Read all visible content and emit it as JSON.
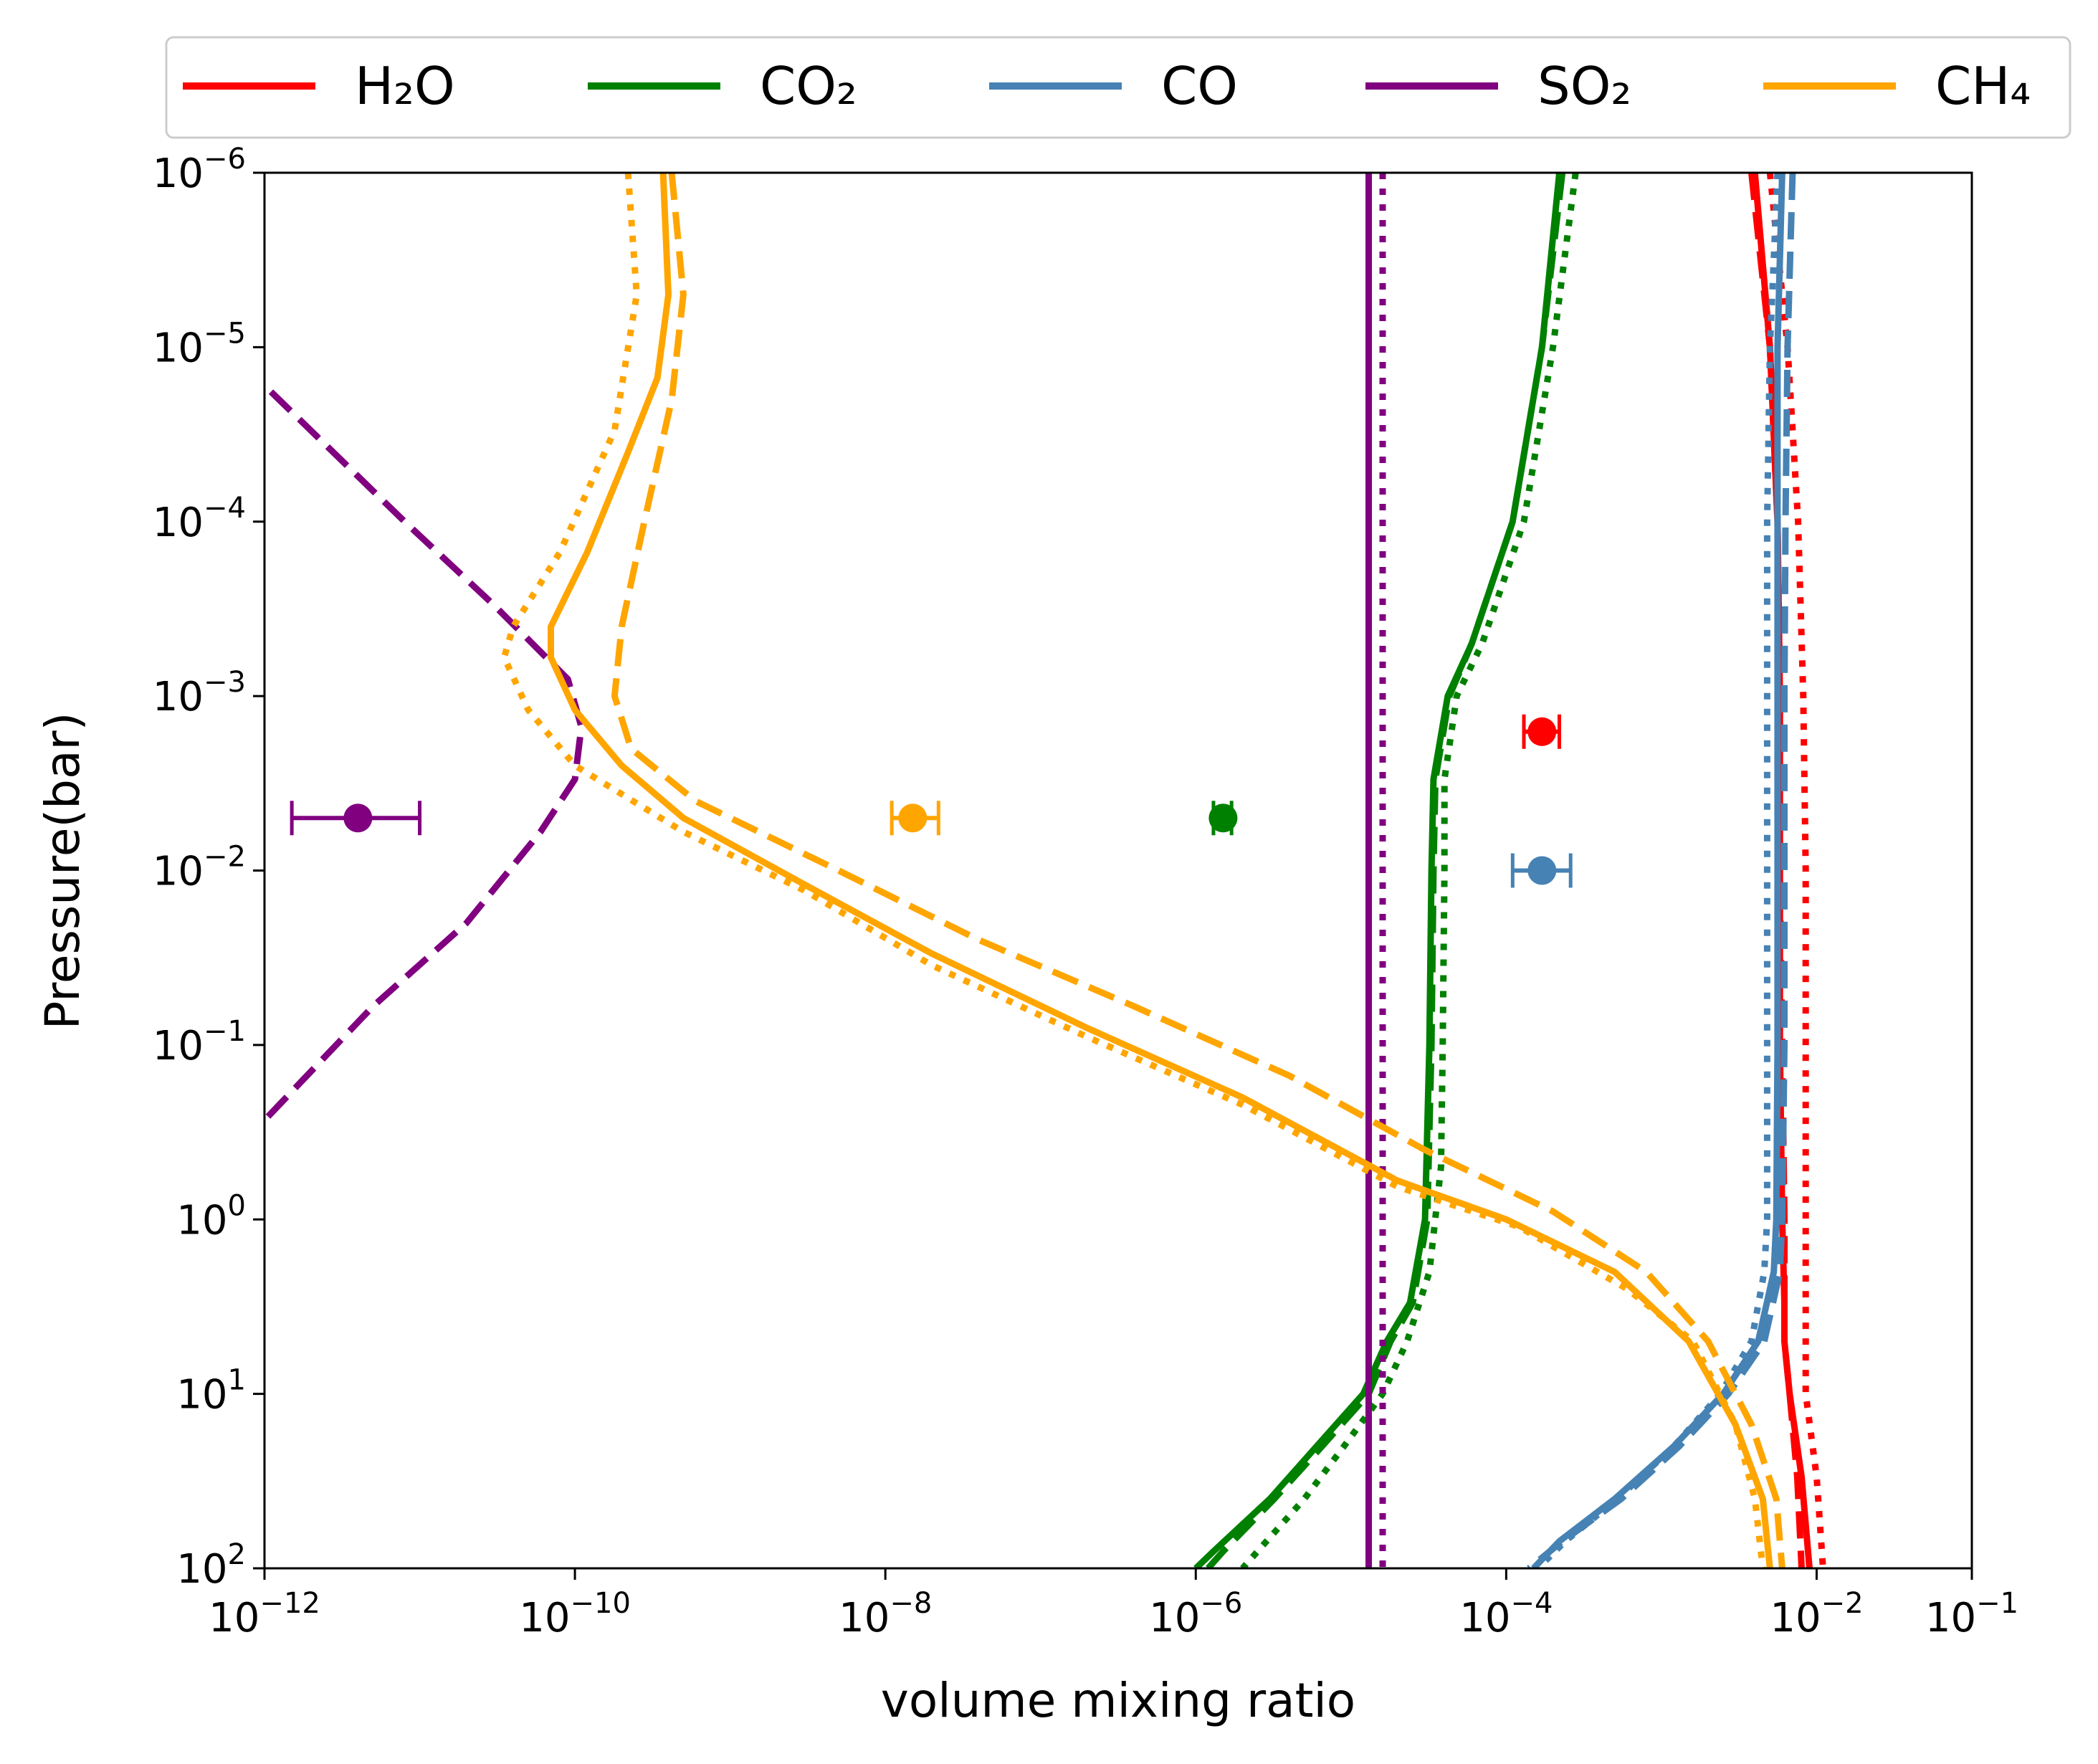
{
  "chart_data": {
    "type": "line",
    "xlabel": "volume mixing ratio",
    "ylabel": "Pressure(bar)",
    "xscale": "log",
    "yscale": "log",
    "yinverted": true,
    "xlim": [
      1e-12,
      0.1
    ],
    "ylim": [
      100,
      1e-06
    ],
    "x_ticks": [
      {
        "base": "10",
        "exp": "−12"
      },
      {
        "base": "10",
        "exp": "−10"
      },
      {
        "base": "10",
        "exp": "−8"
      },
      {
        "base": "10",
        "exp": "−6"
      },
      {
        "base": "10",
        "exp": "−4"
      },
      {
        "base": "10",
        "exp": "−2"
      },
      {
        "base": "10",
        "exp": "−1"
      }
    ],
    "y_ticks": [
      {
        "base": "10",
        "exp": "−6"
      },
      {
        "base": "10",
        "exp": "−5"
      },
      {
        "base": "10",
        "exp": "−4"
      },
      {
        "base": "10",
        "exp": "−3"
      },
      {
        "base": "10",
        "exp": "−2"
      },
      {
        "base": "10",
        "exp": "−1"
      },
      {
        "base": "10",
        "exp": "0"
      },
      {
        "base": "10",
        "exp": "1"
      },
      {
        "base": "10",
        "exp": "2"
      }
    ],
    "legend": {
      "placement": "top, above plot",
      "entries": [
        {
          "label": "H₂O",
          "color": "#ff0000"
        },
        {
          "label": "CO₂",
          "color": "#008000"
        },
        {
          "label": "CO",
          "color": "#4682b4"
        },
        {
          "label": "SO₂",
          "color": "#800080"
        },
        {
          "label": "CH₄",
          "color": "#ffa500"
        }
      ]
    },
    "series": [
      {
        "name": "H2O",
        "style": "solid",
        "color": "#ff0000",
        "points": [
          [
            0.004,
            1e-06
          ],
          [
            0.005,
            1e-05
          ],
          [
            0.0056,
            0.0001
          ],
          [
            0.0058,
            0.001
          ],
          [
            0.0058,
            0.01
          ],
          [
            0.0058,
            0.1
          ],
          [
            0.006,
            1
          ],
          [
            0.0062,
            3
          ],
          [
            0.0062,
            5
          ],
          [
            0.0067,
            10
          ],
          [
            0.008,
            30
          ],
          [
            0.009,
            100
          ]
        ]
      },
      {
        "name": "H2O",
        "style": "dashed",
        "color": "#ff0000",
        "points": [
          [
            0.0038,
            1e-06
          ],
          [
            0.005,
            1e-05
          ],
          [
            0.0056,
            0.0001
          ],
          [
            0.0058,
            0.001
          ],
          [
            0.0058,
            0.01
          ],
          [
            0.006,
            0.1
          ],
          [
            0.0062,
            1
          ],
          [
            0.0062,
            5
          ],
          [
            0.0067,
            10
          ],
          [
            0.0075,
            30
          ],
          [
            0.008,
            100
          ]
        ]
      },
      {
        "name": "H2O",
        "style": "dotted",
        "color": "#ff0000",
        "points": [
          [
            0.005,
            1e-06
          ],
          [
            0.0065,
            1e-05
          ],
          [
            0.0076,
            0.0001
          ],
          [
            0.0082,
            0.001
          ],
          [
            0.0085,
            0.01
          ],
          [
            0.0085,
            0.1
          ],
          [
            0.0085,
            1
          ],
          [
            0.0085,
            10
          ],
          [
            0.01,
            30
          ],
          [
            0.011,
            100
          ]
        ]
      },
      {
        "name": "CO2",
        "style": "solid",
        "color": "#008000",
        "points": [
          [
            0.00022,
            1e-06
          ],
          [
            0.00017,
            1e-05
          ],
          [
            0.00011,
            0.0001
          ],
          [
            6e-05,
            0.0005
          ],
          [
            4.2e-05,
            0.001
          ],
          [
            3.4e-05,
            0.003
          ],
          [
            3.3e-05,
            0.01
          ],
          [
            3.2e-05,
            0.1
          ],
          [
            3e-05,
            1
          ],
          [
            2.4e-05,
            3
          ],
          [
            1.7e-05,
            5
          ],
          [
            1.2e-05,
            10
          ],
          [
            6e-06,
            20
          ],
          [
            3e-06,
            40
          ],
          [
            1.3e-06,
            80
          ],
          [
            1e-06,
            100
          ]
        ]
      },
      {
        "name": "CO2",
        "style": "dashed",
        "color": "#008000",
        "points": [
          [
            0.00023,
            1e-06
          ],
          [
            0.00017,
            1e-05
          ],
          [
            0.00011,
            0.0001
          ],
          [
            6e-05,
            0.0005
          ],
          [
            4.3e-05,
            0.001
          ],
          [
            3.5e-05,
            0.003
          ],
          [
            3.4e-05,
            0.01
          ],
          [
            3.3e-05,
            0.1
          ],
          [
            3.1e-05,
            1
          ],
          [
            2.5e-05,
            3
          ],
          [
            1.8e-05,
            5
          ],
          [
            1.3e-05,
            10
          ],
          [
            6.5e-06,
            20
          ],
          [
            3.2e-06,
            40
          ],
          [
            1.5e-06,
            80
          ],
          [
            1.2e-06,
            100
          ]
        ]
      },
      {
        "name": "CO2",
        "style": "dotted",
        "color": "#008000",
        "points": [
          [
            0.00028,
            1e-06
          ],
          [
            0.0002,
            1e-05
          ],
          [
            0.00013,
            0.0001
          ],
          [
            7e-05,
            0.0005
          ],
          [
            4.8e-05,
            0.001
          ],
          [
            4e-05,
            0.003
          ],
          [
            4e-05,
            0.01
          ],
          [
            3.9e-05,
            0.1
          ],
          [
            3.8e-05,
            0.5
          ],
          [
            3.2e-05,
            2
          ],
          [
            2.3e-05,
            5
          ],
          [
            1.6e-05,
            10
          ],
          [
            9e-06,
            20
          ],
          [
            5e-06,
            40
          ],
          [
            2.5e-06,
            80
          ],
          [
            2e-06,
            100
          ]
        ]
      },
      {
        "name": "CO",
        "style": "solid",
        "color": "#4682b4",
        "points": [
          [
            0.006,
            1e-06
          ],
          [
            0.0056,
            1e-05
          ],
          [
            0.0056,
            0.0001
          ],
          [
            0.0056,
            0.001
          ],
          [
            0.0056,
            0.01
          ],
          [
            0.0056,
            0.1
          ],
          [
            0.0055,
            1
          ],
          [
            0.0053,
            2
          ],
          [
            0.0042,
            5
          ],
          [
            0.0025,
            10
          ],
          [
            0.0012,
            20
          ],
          [
            0.0005,
            40
          ],
          [
            0.00022,
            70
          ],
          [
            0.00015,
            100
          ]
        ]
      },
      {
        "name": "CO",
        "style": "dashed",
        "color": "#4682b4",
        "points": [
          [
            0.007,
            1e-06
          ],
          [
            0.0065,
            1e-05
          ],
          [
            0.0063,
            0.0001
          ],
          [
            0.0062,
            0.001
          ],
          [
            0.0062,
            0.01
          ],
          [
            0.0062,
            0.1
          ],
          [
            0.006,
            1
          ],
          [
            0.0058,
            2
          ],
          [
            0.0046,
            5
          ],
          [
            0.0027,
            10
          ],
          [
            0.0013,
            20
          ],
          [
            0.00055,
            40
          ],
          [
            0.00023,
            70
          ],
          [
            0.00014,
            100
          ]
        ]
      },
      {
        "name": "CO",
        "style": "dotted",
        "color": "#4682b4",
        "points": [
          [
            0.0056,
            1e-06
          ],
          [
            0.005,
            1e-05
          ],
          [
            0.0048,
            0.0001
          ],
          [
            0.0048,
            0.001
          ],
          [
            0.0048,
            0.01
          ],
          [
            0.0048,
            0.1
          ],
          [
            0.0048,
            1
          ],
          [
            0.0046,
            2
          ],
          [
            0.0038,
            5
          ],
          [
            0.0024,
            10
          ],
          [
            0.0012,
            20
          ],
          [
            0.00052,
            40
          ],
          [
            0.00024,
            70
          ],
          [
            0.00016,
            100
          ]
        ]
      },
      {
        "name": "SO2",
        "style": "solid",
        "color": "#800080",
        "points": [
          [
            1.3e-05,
            1e-06
          ],
          [
            1.3e-05,
            100
          ]
        ]
      },
      {
        "name": "SO2",
        "style": "dashed",
        "color": "#800080",
        "points": [
          [
            1.1e-12,
            1.8e-05
          ],
          [
            8e-12,
            0.0001
          ],
          [
            3e-11,
            0.0003
          ],
          [
            9e-11,
            0.0008
          ],
          [
            1.1e-10,
            0.0015
          ],
          [
            1e-10,
            0.003
          ],
          [
            6e-11,
            0.006
          ],
          [
            2e-11,
            0.02
          ],
          [
            5e-12,
            0.06
          ],
          [
            1e-12,
            0.27
          ]
        ]
      },
      {
        "name": "SO2",
        "style": "dotted",
        "color": "#800080",
        "points": [
          [
            1.6e-05,
            1e-06
          ],
          [
            1.6e-05,
            100
          ]
        ]
      },
      {
        "name": "CH4",
        "style": "solid",
        "color": "#ffa500",
        "points": [
          [
            3.7e-10,
            1e-06
          ],
          [
            4e-10,
            5e-06
          ],
          [
            3.4e-10,
            1.5e-05
          ],
          [
            2.2e-10,
            4e-05
          ],
          [
            1.2e-10,
            0.00015
          ],
          [
            7e-11,
            0.0004
          ],
          [
            7e-11,
            0.0006
          ],
          [
            1e-10,
            0.0012
          ],
          [
            2e-10,
            0.0025
          ],
          [
            5e-10,
            0.005
          ],
          [
            3e-09,
            0.012
          ],
          [
            2e-08,
            0.03
          ],
          [
            2e-07,
            0.08
          ],
          [
            2e-06,
            0.2
          ],
          [
            2e-05,
            0.6
          ],
          [
            0.0001,
            1
          ],
          [
            0.0005,
            2
          ],
          [
            0.0015,
            5
          ],
          [
            0.003,
            15
          ],
          [
            0.0045,
            40
          ],
          [
            0.005,
            100
          ]
        ]
      },
      {
        "name": "CH4",
        "style": "dashed",
        "color": "#ffa500",
        "points": [
          [
            4.2e-10,
            1e-06
          ],
          [
            5e-10,
            5e-06
          ],
          [
            4.2e-10,
            2e-05
          ],
          [
            2.8e-10,
            0.0001
          ],
          [
            2e-10,
            0.0004
          ],
          [
            1.8e-10,
            0.001
          ],
          [
            2.3e-10,
            0.002
          ],
          [
            6e-10,
            0.004
          ],
          [
            5e-09,
            0.01
          ],
          [
            4e-08,
            0.025
          ],
          [
            4e-07,
            0.06
          ],
          [
            4e-06,
            0.15
          ],
          [
            3e-05,
            0.4
          ],
          [
            0.0002,
            0.9
          ],
          [
            0.0008,
            2
          ],
          [
            0.002,
            5
          ],
          [
            0.0038,
            15
          ],
          [
            0.0055,
            40
          ],
          [
            0.006,
            100
          ]
        ]
      },
      {
        "name": "CH4",
        "style": "dotted",
        "color": "#ffa500",
        "points": [
          [
            2.2e-10,
            1e-06
          ],
          [
            2.5e-10,
            5e-06
          ],
          [
            1.8e-10,
            3e-05
          ],
          [
            8e-11,
            0.00015
          ],
          [
            4e-11,
            0.0004
          ],
          [
            3.5e-11,
            0.0006
          ],
          [
            5e-11,
            0.0012
          ],
          [
            1e-10,
            0.0025
          ],
          [
            5e-10,
            0.006
          ],
          [
            3e-09,
            0.013
          ],
          [
            2e-08,
            0.035
          ],
          [
            2e-07,
            0.09
          ],
          [
            2e-06,
            0.22
          ],
          [
            2e-05,
            0.65
          ],
          [
            0.00012,
            1.1
          ],
          [
            0.0006,
            2.5
          ],
          [
            0.0016,
            5
          ],
          [
            0.003,
            15
          ],
          [
            0.004,
            40
          ],
          [
            0.0045,
            100
          ]
        ]
      }
    ],
    "observations": [
      {
        "name": "H2O",
        "color": "#ff0000",
        "x": 0.00017,
        "xerr": [
          0.00013,
          0.00022
        ],
        "y": 0.0016
      },
      {
        "name": "CO",
        "color": "#4682b4",
        "x": 0.00017,
        "xerr": [
          0.00011,
          0.00026
        ],
        "y": 0.01
      },
      {
        "name": "CO2",
        "color": "#008000",
        "x": 1.5e-06,
        "xerr": [
          1.3e-06,
          1.7e-06
        ],
        "y": 0.005
      },
      {
        "name": "CH4",
        "color": "#ffa500",
        "x": 1.5e-08,
        "xerr": [
          1.1e-08,
          2.2e-08
        ],
        "y": 0.005
      },
      {
        "name": "SO2",
        "color": "#800080",
        "x": 4e-12,
        "xerr": [
          1.5e-12,
          1e-11
        ],
        "y": 0.005
      }
    ]
  }
}
